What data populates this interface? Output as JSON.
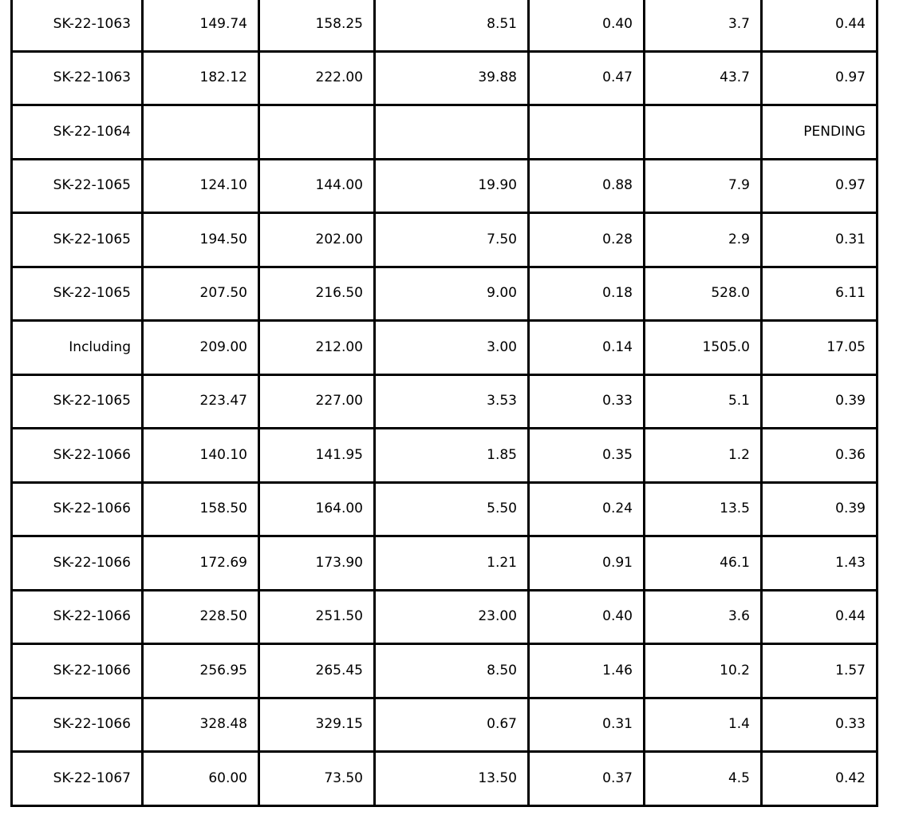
{
  "page": {
    "background_color": "#ffffff"
  },
  "table": {
    "description_name": "drill-results-table",
    "border_color": "#000000",
    "text_color": "#000000",
    "column_count": 7,
    "rows": [
      [
        "SK-22-1063",
        "149.74",
        "158.25",
        "8.51",
        "0.40",
        "3.7",
        "0.44"
      ],
      [
        "SK-22-1063",
        "182.12",
        "222.00",
        "39.88",
        "0.47",
        "43.7",
        "0.97"
      ],
      [
        "SK-22-1064",
        "",
        "",
        "",
        "",
        "",
        "PENDING"
      ],
      [
        "SK-22-1065",
        "124.10",
        "144.00",
        "19.90",
        "0.88",
        "7.9",
        "0.97"
      ],
      [
        "SK-22-1065",
        "194.50",
        "202.00",
        "7.50",
        "0.28",
        "2.9",
        "0.31"
      ],
      [
        "SK-22-1065",
        "207.50",
        "216.50",
        "9.00",
        "0.18",
        "528.0",
        "6.11"
      ],
      [
        "Including",
        "209.00",
        "212.00",
        "3.00",
        "0.14",
        "1505.0",
        "17.05"
      ],
      [
        "SK-22-1065",
        "223.47",
        "227.00",
        "3.53",
        "0.33",
        "5.1",
        "0.39"
      ],
      [
        "SK-22-1066",
        "140.10",
        "141.95",
        "1.85",
        "0.35",
        "1.2",
        "0.36"
      ],
      [
        "SK-22-1066",
        "158.50",
        "164.00",
        "5.50",
        "0.24",
        "13.5",
        "0.39"
      ],
      [
        "SK-22-1066",
        "172.69",
        "173.90",
        "1.21",
        "0.91",
        "46.1",
        "1.43"
      ],
      [
        "SK-22-1066",
        "228.50",
        "251.50",
        "23.00",
        "0.40",
        "3.6",
        "0.44"
      ],
      [
        "SK-22-1066",
        "256.95",
        "265.45",
        "8.50",
        "1.46",
        "10.2",
        "1.57"
      ],
      [
        "SK-22-1066",
        "328.48",
        "329.15",
        "0.67",
        "0.31",
        "1.4",
        "0.33"
      ],
      [
        "SK-22-1067",
        "60.00",
        "73.50",
        "13.50",
        "0.37",
        "4.5",
        "0.42"
      ]
    ]
  }
}
